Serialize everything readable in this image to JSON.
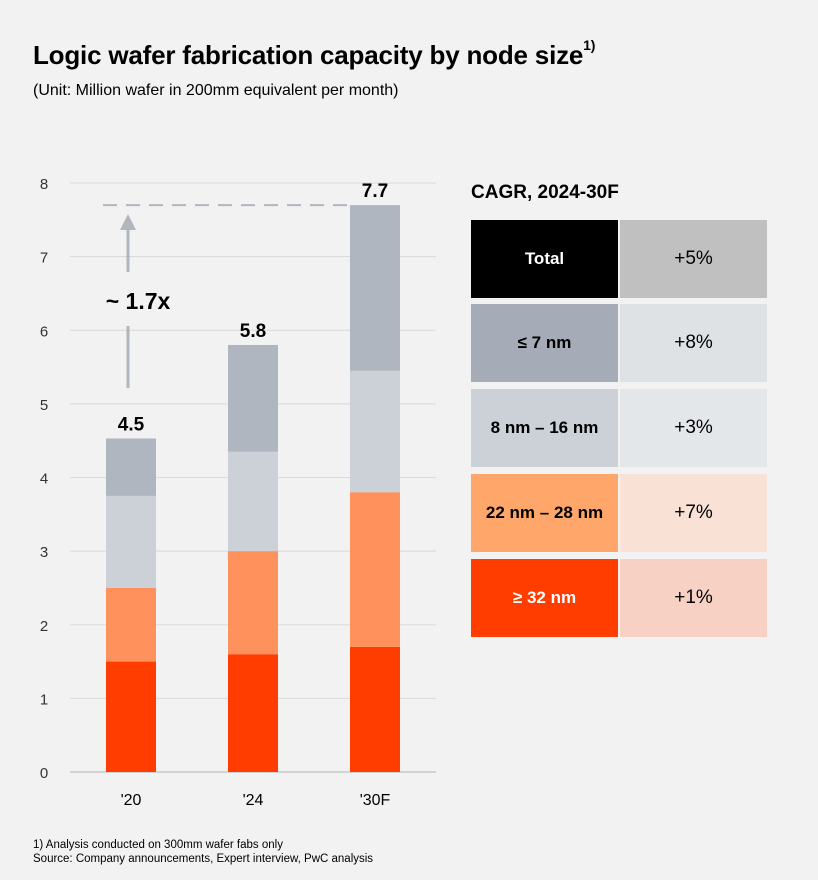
{
  "title": "Logic wafer fabrication capacity by node size",
  "title_sup": "1)",
  "subtitle": "(Unit: Million wafer in 200mm equivalent per month)",
  "chart_data": {
    "type": "bar",
    "stacked": true,
    "categories": [
      "'20",
      "'24",
      "'30F"
    ],
    "series": [
      {
        "name": "≥ 32 nm",
        "values": [
          1.5,
          1.6,
          1.7
        ],
        "color": "#ff3d00"
      },
      {
        "name": "22 nm – 28 nm",
        "values": [
          1.0,
          1.4,
          2.1
        ],
        "color": "#ff925c"
      },
      {
        "name": "8 nm –  16 nm",
        "values": [
          1.25,
          1.35,
          1.65
        ],
        "color": "#cbd1d7"
      },
      {
        "name": "≤ 7 nm",
        "values": [
          0.78,
          1.45,
          2.25
        ],
        "color": "#afb6c0"
      }
    ],
    "totals": [
      "4.5",
      "5.8",
      "7.7"
    ],
    "yticks": [
      "0",
      "1",
      "2",
      "3",
      "4",
      "5",
      "6",
      "7",
      "8"
    ],
    "ylim": [
      0,
      8
    ],
    "grid": true,
    "annotation": "~ 1.7x",
    "xlabel": "",
    "ylabel": ""
  },
  "cagr": {
    "title": "CAGR, 2024-30F",
    "rows": [
      {
        "label": "Total",
        "value": "+5%",
        "label_bg": "#000000",
        "label_fg": "#ffffff",
        "value_bg": "#c0c0c0"
      },
      {
        "label": "≤ 7 nm",
        "value": "+8%",
        "label_bg": "#a5acb7",
        "label_fg": "#000000",
        "value_bg": "#dfe2e5"
      },
      {
        "label": "8 nm –  16 nm",
        "value": "+3%",
        "label_bg": "#cbd1d7",
        "label_fg": "#000000",
        "value_bg": "#e4e7ea"
      },
      {
        "label": "22 nm – 28 nm",
        "value": "+7%",
        "label_bg": "#ffa76b",
        "label_fg": "#000000",
        "value_bg": "#f9e1d6"
      },
      {
        "label": "≥ 32 nm",
        "value": "+1%",
        "label_bg": "#ff3d00",
        "label_fg": "#ffffff",
        "value_bg": "#f7d2c4"
      }
    ]
  },
  "footnote1": "1) Analysis conducted on 300mm wafer fabs only",
  "footnote2": "Source: Company announcements, Expert interview, PwC analysis"
}
